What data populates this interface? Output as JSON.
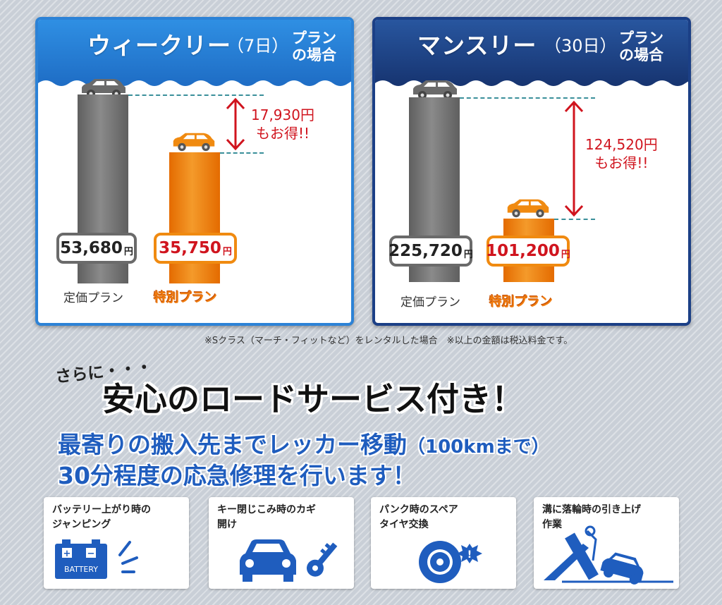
{
  "weekly": {
    "title": "ウィークリー",
    "days": "（7日）",
    "plan_line1": "プラン",
    "plan_line2": "の場合",
    "regular_price": "53,680",
    "special_price": "35,750",
    "yen": "円",
    "regular_label": "定価プラン",
    "special_label": "特別プラン",
    "savings_line1": "17,930円",
    "savings_line2": "もお得!!"
  },
  "monthly": {
    "title": "マンスリー",
    "days": "（30日）",
    "plan_line1": "プラン",
    "plan_line2": "の場合",
    "regular_price": "225,720",
    "special_price": "101,200",
    "yen": "円",
    "regular_label": "定価プラン",
    "special_label": "特別プラン",
    "savings_line1": "124,520円",
    "savings_line2": "もお得!!"
  },
  "footnote": "※Sクラス（マーチ・フィットなど）をレンタルした場合　※以上の金額は税込料金です。",
  "sarani": "さらに・・・",
  "headline": "安心のロードサービス付き！",
  "subline1_main": "最寄りの搬入先までレッカー移動",
  "subline1_small": "（100kmまで）",
  "subline2": "30分程度の応急修理を行います！",
  "cards": [
    {
      "text": "バッテリー上がり時の\nジャンピング",
      "icon_text": "BATTERY"
    },
    {
      "text": "キー閉じこみ時のカギ\n開け"
    },
    {
      "text": "パンク時のスペア\nタイヤ交換"
    },
    {
      "text": "溝に落輪時の引き上げ\n作業"
    }
  ],
  "colors": {
    "weekly_header": "#2c82d6",
    "monthly_header": "#1b3f86",
    "special_orange": "#f08a10",
    "price_red": "#d0141e",
    "service_blue": "#1f5dbe"
  }
}
